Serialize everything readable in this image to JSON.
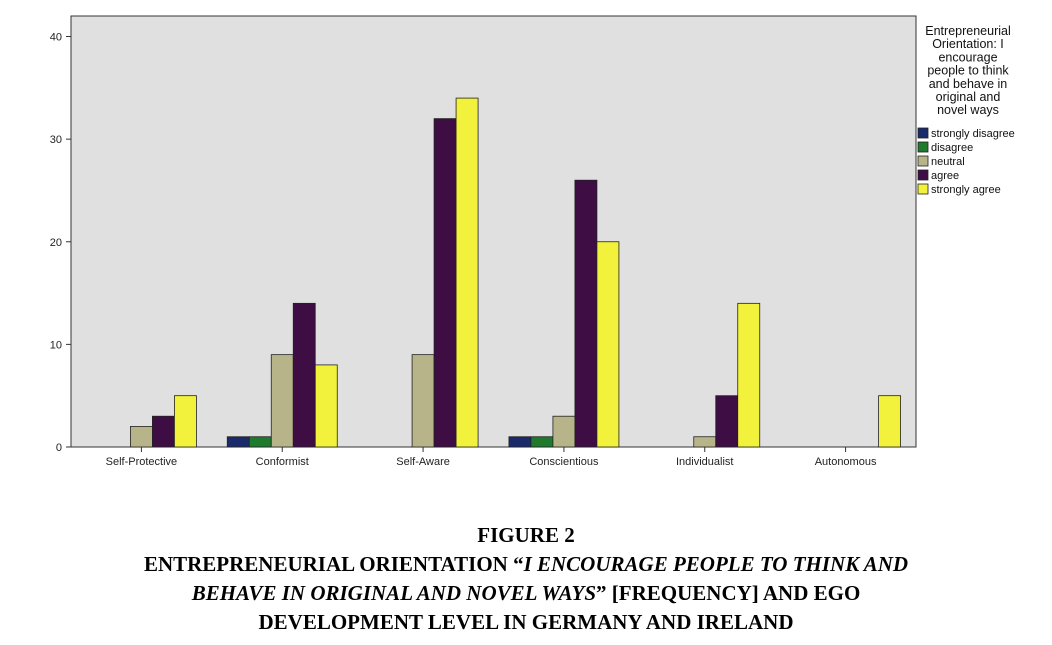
{
  "chart_data": {
    "type": "bar",
    "categories": [
      "Self-Protective",
      "Conformist",
      "Self-Aware",
      "Conscientious",
      "Individualist",
      "Autonomous"
    ],
    "series": [
      {
        "name": "strongly disagree",
        "color": "#1a2a6b",
        "values": [
          0,
          1,
          0,
          1,
          0,
          0
        ]
      },
      {
        "name": "disagree",
        "color": "#1f7a2e",
        "values": [
          0,
          1,
          0,
          1,
          0,
          0
        ]
      },
      {
        "name": "neutral",
        "color": "#b8b48a",
        "values": [
          2,
          9,
          9,
          3,
          1,
          0
        ]
      },
      {
        "name": "agree",
        "color": "#3d0d43",
        "values": [
          3,
          14,
          32,
          26,
          5,
          0
        ]
      },
      {
        "name": "strongly agree",
        "color": "#f2f23c",
        "values": [
          5,
          8,
          34,
          20,
          14,
          5
        ]
      }
    ],
    "ylim": [
      0,
      42
    ],
    "yticks": [
      "0",
      "10",
      "20",
      "30",
      "40"
    ],
    "legend": {
      "title_lines": [
        "Entrepreneurial",
        "Orientation: I",
        "encourage",
        "people to think",
        "and behave in",
        "original and",
        "novel ways"
      ],
      "placement": "right"
    },
    "plot_background": "#e0e0e0",
    "grid": false
  },
  "caption": {
    "figure_label": "FIGURE 2",
    "line1_prefix": "ENTREPRENEURIAL ORIENTATION “",
    "line1_italic": "I ENCOURAGE PEOPLE TO THINK AND",
    "line2_italic": "BEHAVE IN ORIGINAL AND NOVEL WAYS",
    "line2_suffix": "” [FREQUENCY] AND EGO",
    "line3": "DEVELOPMENT LEVEL IN GERMANY AND IRELAND"
  }
}
